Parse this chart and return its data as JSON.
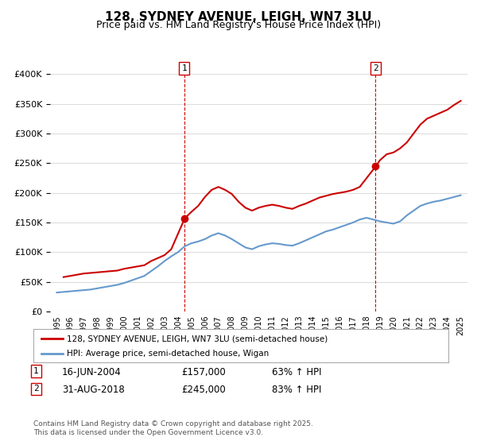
{
  "title": "128, SYDNEY AVENUE, LEIGH, WN7 3LU",
  "subtitle": "Price paid vs. HM Land Registry's House Price Index (HPI)",
  "legend_line1": "128, SYDNEY AVENUE, LEIGH, WN7 3LU (semi-detached house)",
  "legend_line2": "HPI: Average price, semi-detached house, Wigan",
  "footer": "Contains HM Land Registry data © Crown copyright and database right 2025.\nThis data is licensed under the Open Government Licence v3.0.",
  "annotation1": {
    "label": "1",
    "date": "16-JUN-2004",
    "price": "£157,000",
    "hpi": "63% ↑ HPI"
  },
  "annotation2": {
    "label": "2",
    "date": "31-AUG-2018",
    "price": "£245,000",
    "hpi": "83% ↑ HPI"
  },
  "red_color": "#cc0000",
  "blue_color": "#6699cc",
  "background_color": "#ffffff",
  "grid_color": "#dddddd",
  "ylim": [
    0,
    420000
  ],
  "yticks": [
    0,
    50000,
    100000,
    150000,
    200000,
    250000,
    300000,
    350000,
    400000
  ],
  "red_x": [
    1995.5,
    1996.0,
    1996.5,
    1997.0,
    1997.5,
    1998.0,
    1998.5,
    1999.0,
    1999.5,
    2000.0,
    2000.5,
    2001.0,
    2001.5,
    2002.0,
    2002.5,
    2003.0,
    2003.5,
    2004.5,
    2005.0,
    2005.5,
    2006.0,
    2006.5,
    2007.0,
    2007.5,
    2008.0,
    2008.5,
    2009.0,
    2009.5,
    2010.0,
    2010.5,
    2011.0,
    2011.5,
    2012.0,
    2012.5,
    2013.0,
    2013.5,
    2014.0,
    2014.5,
    2015.0,
    2015.5,
    2016.0,
    2016.5,
    2017.0,
    2017.5,
    2018.7,
    2019.0,
    2019.5,
    2020.0,
    2020.5,
    2021.0,
    2021.5,
    2022.0,
    2022.5,
    2023.0,
    2023.5,
    2024.0,
    2024.5,
    2025.0
  ],
  "red_y": [
    58000,
    60000,
    62000,
    64000,
    65000,
    66000,
    67000,
    68000,
    69000,
    72000,
    74000,
    76000,
    78000,
    85000,
    90000,
    95000,
    105000,
    157000,
    168000,
    178000,
    193000,
    205000,
    210000,
    205000,
    198000,
    185000,
    175000,
    170000,
    175000,
    178000,
    180000,
    178000,
    175000,
    173000,
    178000,
    182000,
    187000,
    192000,
    195000,
    198000,
    200000,
    202000,
    205000,
    210000,
    245000,
    255000,
    265000,
    268000,
    275000,
    285000,
    300000,
    315000,
    325000,
    330000,
    335000,
    340000,
    348000,
    355000
  ],
  "blue_x": [
    1995.0,
    1995.5,
    1996.0,
    1996.5,
    1997.0,
    1997.5,
    1998.0,
    1998.5,
    1999.0,
    1999.5,
    2000.0,
    2000.5,
    2001.0,
    2001.5,
    2002.0,
    2002.5,
    2003.0,
    2003.5,
    2004.0,
    2004.5,
    2005.0,
    2005.5,
    2006.0,
    2006.5,
    2007.0,
    2007.5,
    2008.0,
    2008.5,
    2009.0,
    2009.5,
    2010.0,
    2010.5,
    2011.0,
    2011.5,
    2012.0,
    2012.5,
    2013.0,
    2013.5,
    2014.0,
    2014.5,
    2015.0,
    2015.5,
    2016.0,
    2016.5,
    2017.0,
    2017.5,
    2018.0,
    2018.5,
    2019.0,
    2019.5,
    2020.0,
    2020.5,
    2021.0,
    2021.5,
    2022.0,
    2022.5,
    2023.0,
    2023.5,
    2024.0,
    2024.5,
    2025.0
  ],
  "blue_y": [
    32000,
    33000,
    34000,
    35000,
    36000,
    37000,
    39000,
    41000,
    43000,
    45000,
    48000,
    52000,
    56000,
    60000,
    68000,
    76000,
    85000,
    93000,
    100000,
    110000,
    115000,
    118000,
    122000,
    128000,
    132000,
    128000,
    122000,
    115000,
    108000,
    105000,
    110000,
    113000,
    115000,
    114000,
    112000,
    111000,
    115000,
    120000,
    125000,
    130000,
    135000,
    138000,
    142000,
    146000,
    150000,
    155000,
    158000,
    155000,
    152000,
    150000,
    148000,
    152000,
    162000,
    170000,
    178000,
    182000,
    185000,
    187000,
    190000,
    193000,
    196000
  ],
  "marker1_x": 2004.458,
  "marker1_y": 157000,
  "marker2_x": 2018.664,
  "marker2_y": 245000,
  "ann1_x": 2004.458,
  "ann2_x": 2018.664,
  "xmin": 1994.5,
  "xmax": 2025.5
}
